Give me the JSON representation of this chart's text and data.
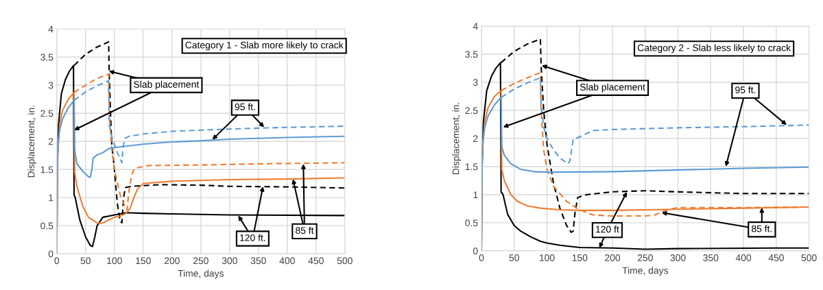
{
  "chart_data": [
    {
      "type": "line",
      "xlabel": "Time, days",
      "ylabel": "Displacement, in.",
      "xlim": [
        0,
        500
      ],
      "ylim": [
        0,
        4
      ],
      "xticks": [
        0,
        50,
        100,
        150,
        200,
        250,
        300,
        350,
        400,
        450,
        500
      ],
      "yticks": [
        0,
        0.5,
        1,
        1.5,
        2,
        2.5,
        3,
        3.5,
        4
      ],
      "grid": true,
      "legend": false,
      "marker": "none",
      "annotations": [
        "Category 1 - Slab more likely to crack",
        {
          "text": "Slab placement",
          "x": 30,
          "y": 2.2
        },
        {
          "text": "95 ft.",
          "x": 270,
          "y": 2.03
        },
        {
          "text": "120 ft.",
          "x": 315,
          "y": 0.68
        },
        {
          "text": "85 ft",
          "x": 410,
          "y": 1.33
        }
      ],
      "series": [
        {
          "color": "#000000",
          "line_style": "solid",
          "x": [
            0,
            1,
            3,
            8,
            15,
            22,
            29,
            30,
            32,
            40,
            50,
            58,
            62,
            66,
            70,
            80,
            90,
            100,
            110,
            120,
            150,
            200,
            250,
            300,
            500
          ],
          "values": [
            0,
            1.5,
            2.3,
            2.85,
            3.1,
            3.25,
            3.35,
            1.05,
            1.0,
            0.6,
            0.3,
            0.15,
            0.13,
            0.3,
            0.5,
            0.65,
            0.67,
            0.69,
            0.71,
            0.73,
            0.72,
            0.71,
            0.7,
            0.69,
            0.68
          ]
        },
        {
          "color": "#000000",
          "line_style": "dashed",
          "x": [
            30,
            50,
            70,
            90,
            91,
            95,
            100,
            105,
            110,
            113,
            116,
            119,
            130,
            180,
            250,
            300,
            400,
            500
          ],
          "values": [
            3.35,
            3.55,
            3.68,
            3.77,
            3.2,
            2.0,
            1.5,
            0.9,
            0.58,
            0.55,
            1.0,
            1.18,
            1.2,
            1.23,
            1.22,
            1.2,
            1.19,
            1.17
          ]
        },
        {
          "color": "#ed7d31",
          "line_style": "solid",
          "x": [
            0,
            1,
            5,
            10,
            20,
            30,
            31,
            35,
            45,
            55,
            70,
            78,
            90,
            100,
            110,
            120,
            127,
            132,
            140,
            150,
            200,
            300,
            400,
            500
          ],
          "values": [
            0,
            1.7,
            2.3,
            2.55,
            2.75,
            2.87,
            1.45,
            1.2,
            0.85,
            0.65,
            0.55,
            0.54,
            0.6,
            0.65,
            0.67,
            0.72,
            0.8,
            0.95,
            1.15,
            1.25,
            1.29,
            1.32,
            1.33,
            1.35
          ]
        },
        {
          "color": "#ed7d31",
          "line_style": "dashed",
          "x": [
            30,
            50,
            70,
            90,
            91,
            95,
            100,
            110,
            118,
            122,
            125,
            130,
            135,
            160,
            250,
            350,
            500
          ],
          "values": [
            2.87,
            3.0,
            3.12,
            3.2,
            2.5,
            1.9,
            1.5,
            1.05,
            0.85,
            0.78,
            1.1,
            1.4,
            1.52,
            1.57,
            1.58,
            1.6,
            1.62
          ]
        },
        {
          "color": "#5b9bd5",
          "line_style": "solid",
          "x": [
            0,
            1,
            5,
            10,
            20,
            30,
            31,
            35,
            45,
            55,
            58,
            61,
            63,
            70,
            80,
            90,
            100,
            150,
            200,
            250,
            300,
            400,
            500
          ],
          "values": [
            0,
            1.85,
            2.2,
            2.4,
            2.6,
            2.73,
            1.85,
            1.6,
            1.47,
            1.37,
            1.36,
            1.5,
            1.7,
            1.76,
            1.8,
            1.87,
            1.89,
            1.95,
            1.99,
            2.01,
            2.04,
            2.07,
            2.09
          ]
        },
        {
          "color": "#5b9bd5",
          "line_style": "dashed",
          "x": [
            30,
            50,
            70,
            90,
            91,
            95,
            100,
            105,
            110,
            113,
            115,
            118,
            125,
            150,
            200,
            300,
            400,
            500
          ],
          "values": [
            2.73,
            2.88,
            2.99,
            3.08,
            2.3,
            2.1,
            1.95,
            1.8,
            1.7,
            1.62,
            1.9,
            2.05,
            2.09,
            2.13,
            2.18,
            2.22,
            2.25,
            2.27
          ]
        }
      ]
    },
    {
      "type": "line",
      "xlabel": "Time, days",
      "ylabel": "Displacement, in.",
      "xlim": [
        0,
        500
      ],
      "ylim": [
        0,
        4
      ],
      "xticks": [
        0,
        50,
        100,
        150,
        200,
        250,
        300,
        350,
        400,
        450,
        500
      ],
      "yticks": [
        0,
        0.5,
        1,
        1.5,
        2,
        2.5,
        3,
        3.5,
        4
      ],
      "grid": true,
      "legend": false,
      "marker": "none",
      "annotations": [
        "Category 2 - Slab less likely to crack",
        {
          "text": "Slab placement",
          "x": 33,
          "y": 2.2
        },
        {
          "text": "95 ft.",
          "x": 373,
          "y": 1.5
        },
        {
          "text": "120 ft",
          "x": 180,
          "y": 0.05
        },
        {
          "text": "85 ft.",
          "x": 275,
          "y": 0.68
        }
      ],
      "series": [
        {
          "color": "#000000",
          "line_style": "solid",
          "x": [
            0,
            1,
            3,
            8,
            15,
            22,
            29,
            30,
            33,
            40,
            50,
            60,
            75,
            90,
            100,
            120,
            150,
            200,
            250,
            300,
            450,
            500
          ],
          "values": [
            0,
            1.5,
            2.3,
            2.85,
            3.1,
            3.25,
            3.35,
            1.05,
            1.0,
            0.65,
            0.45,
            0.35,
            0.25,
            0.17,
            0.14,
            0.1,
            0.06,
            0.05,
            0.03,
            0.04,
            0.05,
            0.05
          ]
        },
        {
          "color": "#000000",
          "line_style": "dashed",
          "x": [
            30,
            50,
            70,
            90,
            91,
            95,
            100,
            110,
            120,
            130,
            137,
            140,
            143,
            147,
            160,
            200,
            250,
            300,
            400,
            500
          ],
          "values": [
            3.35,
            3.55,
            3.68,
            3.77,
            3.3,
            2.5,
            1.9,
            1.2,
            0.75,
            0.45,
            0.33,
            0.35,
            0.7,
            0.95,
            1.0,
            1.05,
            1.07,
            1.05,
            1.02,
            1.02
          ]
        },
        {
          "color": "#ed7d31",
          "line_style": "solid",
          "x": [
            0,
            1,
            5,
            10,
            20,
            30,
            31,
            35,
            45,
            55,
            70,
            90,
            120,
            150,
            200,
            300,
            400,
            500
          ],
          "values": [
            0,
            1.7,
            2.3,
            2.55,
            2.75,
            2.85,
            1.45,
            1.25,
            1.0,
            0.88,
            0.8,
            0.76,
            0.73,
            0.72,
            0.72,
            0.74,
            0.76,
            0.78
          ]
        },
        {
          "color": "#ed7d31",
          "line_style": "dashed",
          "x": [
            30,
            50,
            70,
            90,
            91,
            95,
            100,
            110,
            130,
            150,
            170,
            200,
            250,
            265,
            280,
            300,
            400,
            500
          ],
          "values": [
            2.85,
            2.98,
            3.08,
            3.17,
            2.5,
            1.8,
            1.45,
            1.15,
            0.88,
            0.73,
            0.64,
            0.62,
            0.62,
            0.64,
            0.72,
            0.77,
            0.77,
            0.78
          ]
        },
        {
          "color": "#5b9bd5",
          "line_style": "solid",
          "x": [
            0,
            1,
            5,
            10,
            20,
            30,
            31,
            35,
            45,
            60,
            80,
            100,
            200,
            300,
            400,
            500
          ],
          "values": [
            0,
            1.85,
            2.2,
            2.4,
            2.6,
            2.73,
            1.85,
            1.7,
            1.55,
            1.45,
            1.41,
            1.4,
            1.41,
            1.44,
            1.47,
            1.49
          ]
        },
        {
          "color": "#5b9bd5",
          "line_style": "dashed",
          "x": [
            30,
            50,
            70,
            90,
            91,
            95,
            100,
            110,
            120,
            132,
            135,
            140,
            150,
            170,
            200,
            300,
            400,
            500
          ],
          "values": [
            2.73,
            2.88,
            2.99,
            3.08,
            2.6,
            2.2,
            2.0,
            1.8,
            1.65,
            1.55,
            1.6,
            1.98,
            2.03,
            2.14,
            2.16,
            2.19,
            2.21,
            2.24
          ]
        }
      ]
    }
  ]
}
